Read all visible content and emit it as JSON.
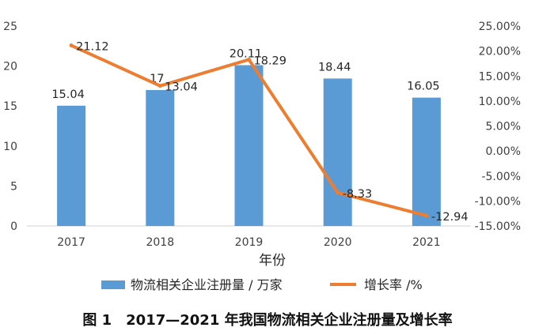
{
  "chart_data": {
    "type": "bar",
    "categories": [
      "2017",
      "2018",
      "2019",
      "2020",
      "2021"
    ],
    "series": [
      {
        "name": "物流相关企业注册量 / 万家",
        "type": "bar",
        "axis": "left",
        "color": "#5b9bd5",
        "values": [
          15.04,
          17,
          20.11,
          18.44,
          16.05
        ],
        "labels": [
          "15.04",
          "17",
          "20.11",
          "18.44",
          "16.05"
        ]
      },
      {
        "name": "增长率 /%",
        "type": "line",
        "axis": "right",
        "color": "#ed7d31",
        "values": [
          21.12,
          13.04,
          18.29,
          -8.33,
          -12.94
        ],
        "labels": [
          "21.12",
          "13.04",
          "18.29",
          "-8.33",
          "-12.94"
        ]
      }
    ],
    "xlabel": "年份",
    "ylim": [
      0,
      25
    ],
    "yticks": [
      "0",
      "5",
      "10",
      "15",
      "20",
      "25"
    ],
    "y2lim": [
      -15,
      25
    ],
    "y2ticks": [
      "-15.00%",
      "-10.00%",
      "-5.00%",
      "0.00%",
      "5.00%",
      "10.00%",
      "15.00%",
      "20.00%",
      "25.00%"
    ],
    "grid": false,
    "legend": "bottom"
  },
  "caption": "图 1　2017—2021 年我国物流相关企业注册量及增长率"
}
